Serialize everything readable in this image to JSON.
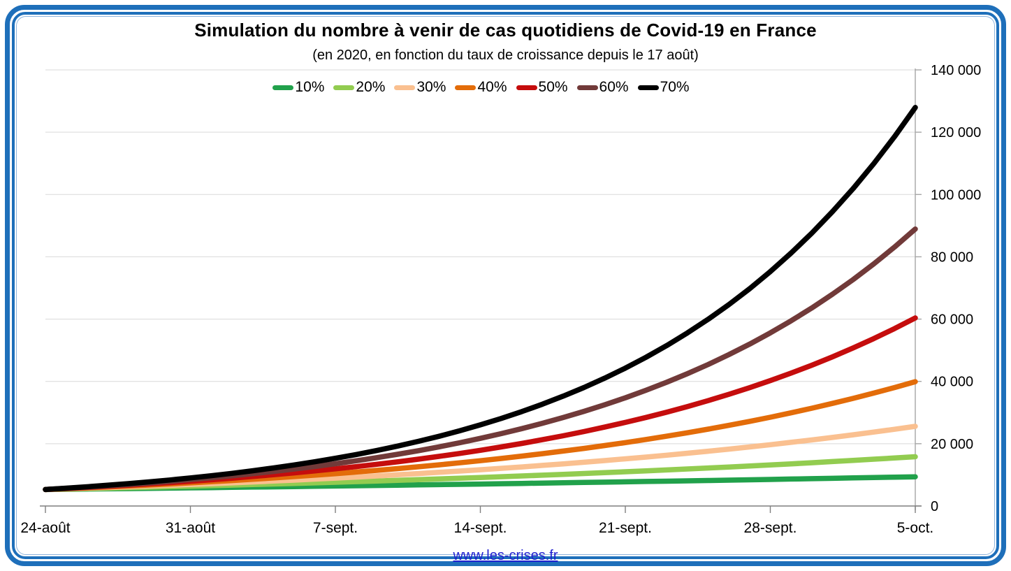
{
  "header": {
    "title": "Simulation du nombre à venir de cas quotidiens de Covid-19 en France",
    "subtitle": "(en 2020, en fonction du taux de croissance depuis le 17 août)"
  },
  "footer": {
    "link_text": "www.les-crises.fr",
    "link_color": "#2020CF"
  },
  "frame_color": "#1E6FBA",
  "chart_data": {
    "type": "line",
    "title": "Simulation du nombre à venir de cas quotidiens de Covid-19 en France",
    "subtitle": "(en 2020, en fonction du taux de croissance depuis le 17 août)",
    "categories": [
      "24-août",
      "31-août",
      "7-sept.",
      "14-sept.",
      "21-sept.",
      "28-sept.",
      "5-oct."
    ],
    "series": [
      {
        "name": "10%",
        "color": "#21A14B",
        "values": [
          5300,
          5830,
          6413,
          7054,
          7760,
          8536,
          9389
        ]
      },
      {
        "name": "20%",
        "color": "#92CC50",
        "values": [
          5300,
          6360,
          7632,
          9158,
          10990,
          13188,
          15826
        ]
      },
      {
        "name": "30%",
        "color": "#FAC090",
        "values": [
          5300,
          6890,
          8957,
          11644,
          15137,
          19679,
          25582
        ]
      },
      {
        "name": "40%",
        "color": "#E36C09",
        "values": [
          5300,
          7420,
          10388,
          14543,
          20360,
          28504,
          39906
        ]
      },
      {
        "name": "50%",
        "color": "#C50D0D",
        "values": [
          5300,
          7950,
          11925,
          17888,
          26831,
          40247,
          60370
        ]
      },
      {
        "name": "60%",
        "color": "#713A39",
        "values": [
          5300,
          8480,
          13568,
          21709,
          34734,
          55574,
          88919
        ]
      },
      {
        "name": "70%",
        "color": "#000000",
        "values": [
          5300,
          9010,
          15317,
          26039,
          44266,
          75252,
          127929
        ]
      }
    ],
    "interpolation": "exponential",
    "xlabel": "",
    "ylabel": "",
    "ylim": [
      0,
      140000
    ],
    "y_tick_step": 20000,
    "y_tick_labels": [
      "0",
      "20 000",
      "40 000",
      "60 000",
      "80 000",
      "100 000",
      "120 000",
      "140 000"
    ],
    "grid": "horizontal",
    "gridline_color": "#D9D9D9",
    "x_axis_color": "#7F7F7F",
    "y_axis_color": "#A6A6A6",
    "y_axis_position": "right",
    "legend_position": "top",
    "legend_labels": [
      "10%",
      "20%",
      "30%",
      "40%",
      "50%",
      "60%",
      "70%"
    ]
  }
}
